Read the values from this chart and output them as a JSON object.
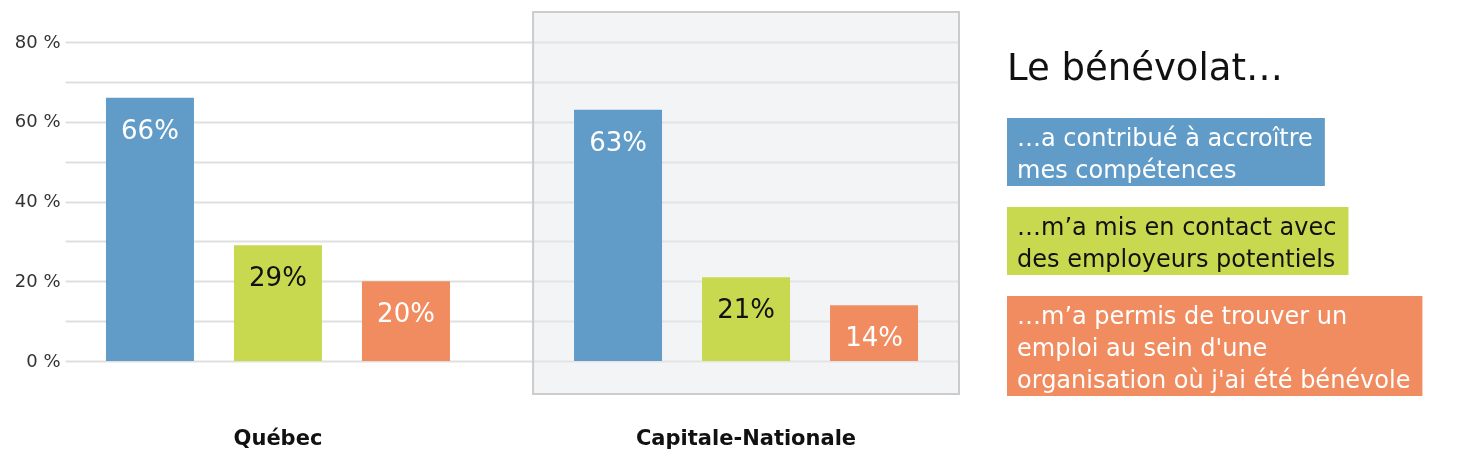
{
  "chart_data": {
    "type": "bar",
    "legend_title": "Le bénévolat…",
    "categories": [
      "Québec",
      "Capitale-Nationale"
    ],
    "series": [
      {
        "name": "…a contribué à accroître mes compétences",
        "color": "#619cc8",
        "values": [
          66,
          63
        ],
        "value_labels": [
          "66%",
          "63%"
        ]
      },
      {
        "name": "…m’a mis en contact avec des employeurs potentiels",
        "color": "#c8d94f",
        "values": [
          29,
          21
        ],
        "value_labels": [
          "29%",
          "21%"
        ]
      },
      {
        "name": "…m’a permis de trouver un emploi au sein d'une organisation où j'ai été bénévole",
        "color": "#f08c5f",
        "values": [
          20,
          14
        ],
        "value_labels": [
          "20%",
          "14%"
        ]
      }
    ],
    "ylim": [
      0,
      80
    ],
    "yticks": [
      {
        "value": 0,
        "label": "0 %"
      },
      {
        "value": 10,
        "label": null
      },
      {
        "value": 20,
        "label": "20 %"
      },
      {
        "value": 30,
        "label": null
      },
      {
        "value": 40,
        "label": "40 %"
      },
      {
        "value": 50,
        "label": null
      },
      {
        "value": 60,
        "label": "60 %"
      },
      {
        "value": 70,
        "label": null
      },
      {
        "value": 80,
        "label": "80 %"
      }
    ],
    "grid": "y",
    "legend": "right",
    "bands": [
      {
        "axis": "x",
        "from": "Capitale-Nationale",
        "to": "Capitale-Nationale",
        "color": "#f3f4f6"
      }
    ]
  }
}
